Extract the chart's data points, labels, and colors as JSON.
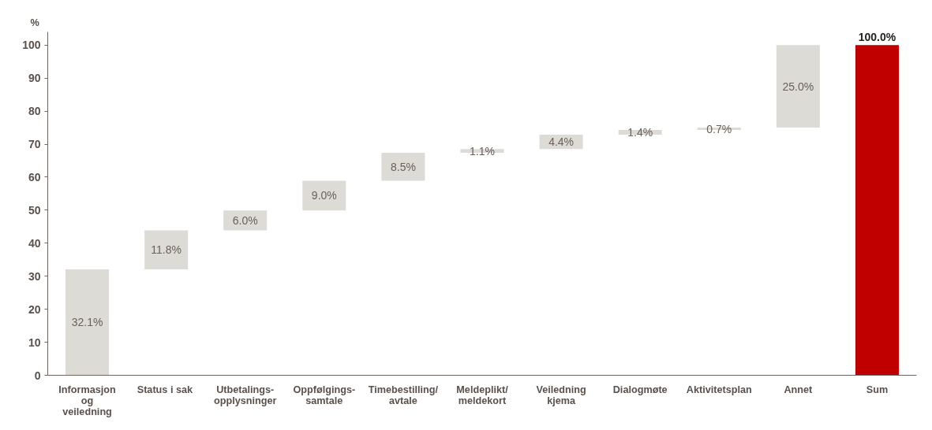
{
  "chart_data": {
    "type": "bar",
    "ylabel": "%",
    "categories": [
      "Informasjon\nog\nveiledning",
      "Status  i sak",
      "Utbetalings-\nopplysninger",
      "Oppfølgings-\nsamtale",
      "Timebestilling/\navtale",
      "Meldeplikt/\nmeldekort",
      "Veiledning\nkjema",
      "Dialogmøte",
      "Aktivitetsplan",
      "Annet",
      "Sum"
    ],
    "values": [
      32.1,
      11.8,
      6.0,
      9.0,
      8.5,
      1.1,
      4.4,
      1.4,
      0.7,
      25.0,
      100.0
    ],
    "base": [
      0,
      32.1,
      43.9,
      49.9,
      58.9,
      67.4,
      68.5,
      72.9,
      74.3,
      75.0,
      0
    ],
    "colors": [
      "#dddbd6",
      "#dddbd6",
      "#dddbd6",
      "#dddbd6",
      "#dddbd6",
      "#dddbd6",
      "#dddbd6",
      "#dddbd6",
      "#dddbd6",
      "#dddbd6",
      "#c00000"
    ],
    "value_labels": [
      "32.1%",
      "11.8%",
      "6.0%",
      "9.0%",
      "8.5%",
      "1.1%",
      "4.4%",
      "1.4%",
      "0.7%",
      "25.0%",
      "100.0%"
    ],
    "ylim": [
      0,
      104
    ],
    "yticks": [
      0,
      10,
      20,
      30,
      40,
      50,
      60,
      70,
      80,
      90,
      100
    ],
    "grid": false
  }
}
